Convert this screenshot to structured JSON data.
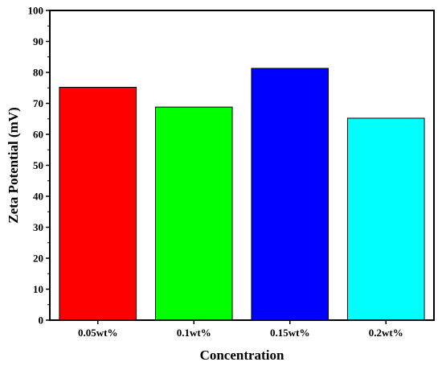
{
  "chart_data": {
    "type": "bar",
    "title": "",
    "xlabel": "Concentration",
    "ylabel": "Zeta Potential (mV)",
    "categories": [
      "0.05wt%",
      "0.1wt%",
      "0.15wt%",
      "0.2wt%"
    ],
    "values": [
      75.2,
      68.8,
      81.3,
      65.2
    ],
    "colors": [
      "#ff0000",
      "#00ff00",
      "#0000ff",
      "#00ffff"
    ],
    "ylim": [
      0,
      100
    ],
    "yticks": [
      0,
      10,
      20,
      30,
      40,
      50,
      60,
      70,
      80,
      90,
      100
    ],
    "grid": false,
    "legend": "none"
  }
}
